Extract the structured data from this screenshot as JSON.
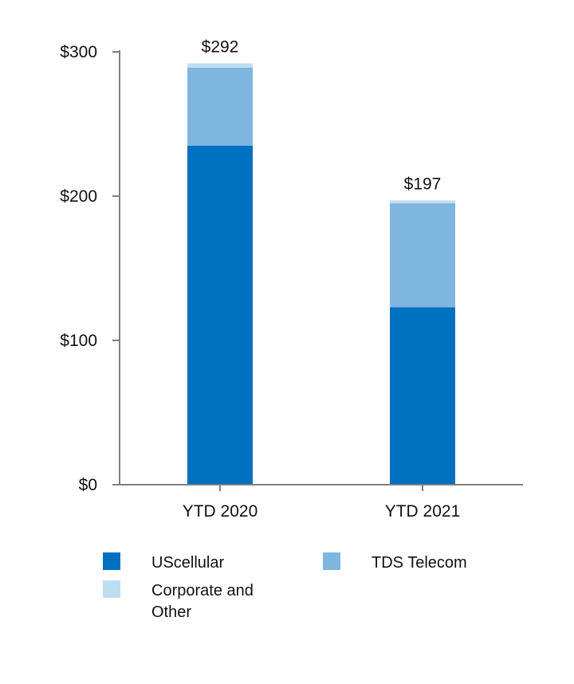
{
  "chart_data": {
    "type": "bar",
    "stacked": true,
    "categories": [
      "YTD 2020",
      "YTD 2021"
    ],
    "series": [
      {
        "name": "UScellular",
        "color": "#0070C0",
        "values": [
          235,
          123
        ]
      },
      {
        "name": "TDS Telecom",
        "color": "#7FB6E0",
        "values": [
          54,
          72
        ]
      },
      {
        "name": "Corporate and Other",
        "color": "#BFDDF1",
        "values": [
          3,
          2
        ]
      }
    ],
    "totals": [
      "$292",
      "$197"
    ],
    "yticks": [
      0,
      100,
      200,
      300
    ],
    "ytick_labels": [
      "$0",
      "$100",
      "$200",
      "$300"
    ],
    "ylim": [
      0,
      300
    ],
    "title": "",
    "xlabel": "",
    "ylabel": "",
    "legend_position": "bottom"
  },
  "legend": {
    "items": [
      "UScellular",
      "TDS Telecom",
      "Corporate and Other"
    ]
  }
}
